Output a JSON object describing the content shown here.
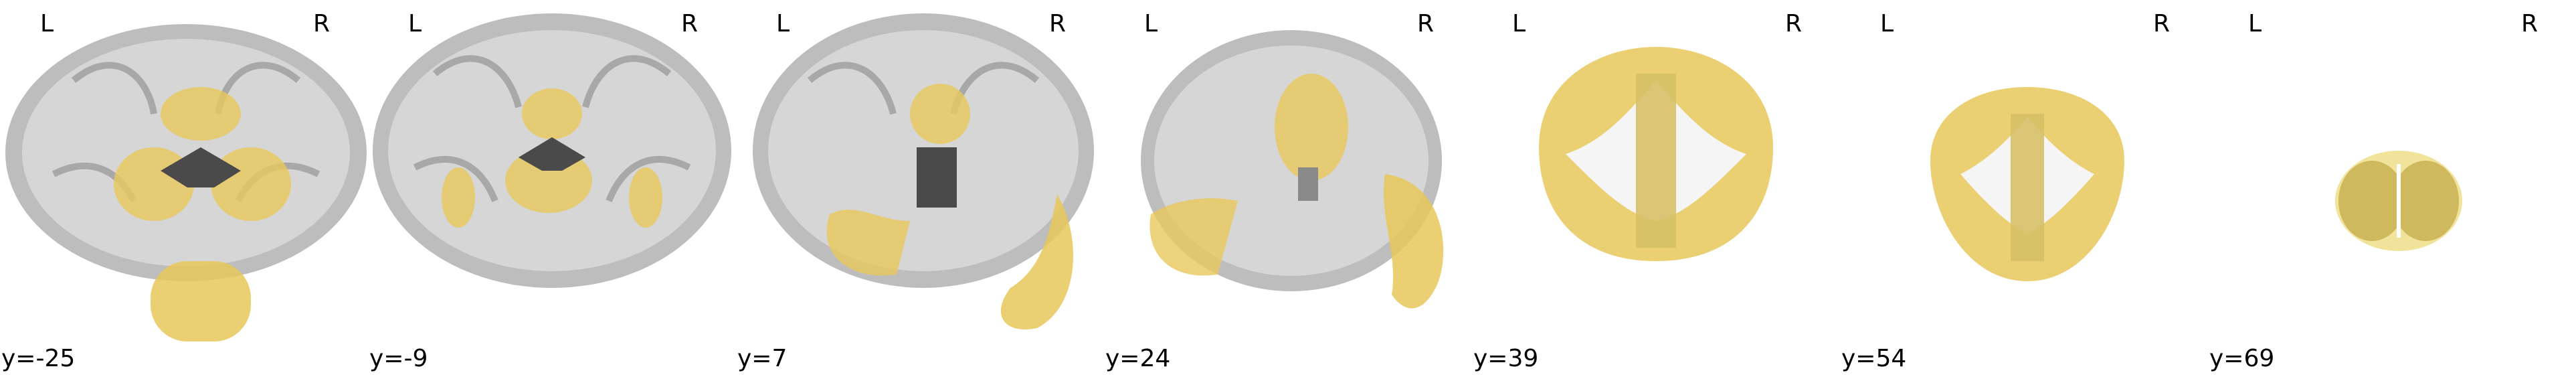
{
  "figure": {
    "orientation_labels": {
      "left": "L",
      "right": "R"
    },
    "overlay_color": "#e8c85a",
    "slices": [
      {
        "coord": "y=-25"
      },
      {
        "coord": "y=-9"
      },
      {
        "coord": "y=7"
      },
      {
        "coord": "y=24"
      },
      {
        "coord": "y=39"
      },
      {
        "coord": "y=54"
      },
      {
        "coord": "y=69"
      }
    ]
  }
}
